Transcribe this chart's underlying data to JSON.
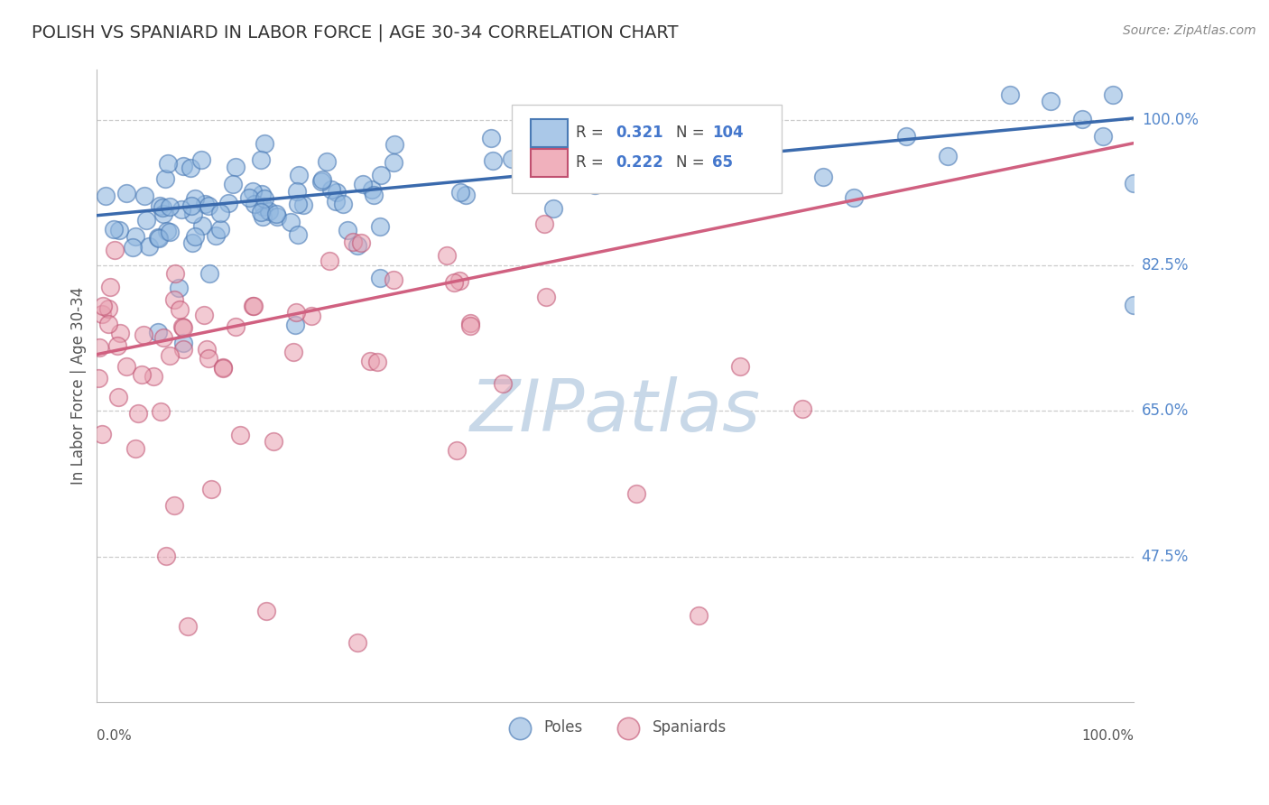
{
  "title": "POLISH VS SPANIARD IN LABOR FORCE | AGE 30-34 CORRELATION CHART",
  "source_text": "Source: ZipAtlas.com",
  "ylabel": "In Labor Force | Age 30-34",
  "xmin": 0.0,
  "xmax": 1.0,
  "ymin": 0.3,
  "ymax": 1.06,
  "yticks": [
    0.475,
    0.65,
    0.825,
    1.0
  ],
  "ytick_labels": [
    "47.5%",
    "65.0%",
    "82.5%",
    "100.0%"
  ],
  "blue_color": "#92b8e0",
  "blue_edge_color": "#4a7ab5",
  "pink_color": "#e8a0b0",
  "pink_edge_color": "#c05070",
  "blue_line_color": "#3a6aad",
  "pink_line_color": "#d06080",
  "grid_color": "#cccccc",
  "title_color": "#333333",
  "source_color": "#888888",
  "axis_label_color": "#555555",
  "right_tick_color": "#5588cc",
  "blue_R": 0.321,
  "blue_N": 104,
  "pink_R": 0.222,
  "pink_N": 65,
  "blue_trend_start_y": 0.885,
  "blue_trend_end_y": 1.002,
  "pink_trend_start_y": 0.718,
  "pink_trend_end_y": 0.972,
  "watermark": "ZIPatlas",
  "watermark_color": "#c8d8e8"
}
